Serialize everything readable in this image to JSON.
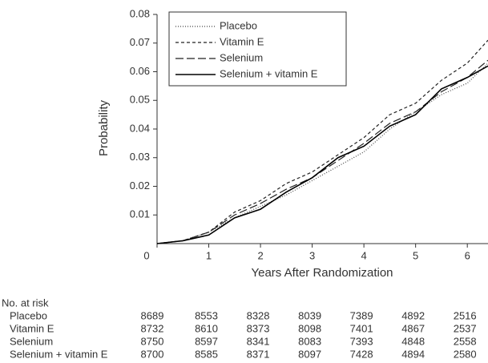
{
  "chart_data": {
    "type": "line",
    "x_label": "Years After Randomization",
    "y_label": "Probability",
    "x": [
      0,
      0.5,
      1,
      1.5,
      2,
      2.5,
      3,
      3.5,
      4,
      4.5,
      5,
      5.5,
      6,
      6.4
    ],
    "series": [
      {
        "name": "Placebo",
        "color": "#444444",
        "dash": "1,2",
        "values": [
          0,
          0.001,
          0.004,
          0.009,
          0.013,
          0.017,
          0.022,
          0.027,
          0.032,
          0.04,
          0.046,
          0.052,
          0.056,
          0.063
        ]
      },
      {
        "name": "Vitamin E",
        "color": "#222222",
        "dash": "4,3",
        "values": [
          0,
          0.001,
          0.004,
          0.011,
          0.015,
          0.021,
          0.025,
          0.031,
          0.037,
          0.045,
          0.049,
          0.057,
          0.063,
          0.071
        ]
      },
      {
        "name": "Selenium",
        "color": "#222222",
        "dash": "10,4",
        "values": [
          0,
          0.001,
          0.004,
          0.01,
          0.014,
          0.019,
          0.023,
          0.029,
          0.035,
          0.042,
          0.046,
          0.053,
          0.058,
          0.064
        ]
      },
      {
        "name": "Selenium + vitamin E",
        "color": "#000000",
        "dash": "none",
        "values": [
          0,
          0.001,
          0.003,
          0.009,
          0.012,
          0.018,
          0.023,
          0.03,
          0.034,
          0.041,
          0.045,
          0.054,
          0.058,
          0.062
        ]
      }
    ],
    "xlim": [
      0,
      6.4
    ],
    "xticks": [
      0,
      1,
      2,
      3,
      4,
      5,
      6
    ],
    "ylim": [
      0,
      0.08
    ],
    "yticks": [
      0.01,
      0.02,
      0.03,
      0.04,
      0.05,
      0.06,
      0.07,
      0.08
    ],
    "legend": "upper-left",
    "risk_table": {
      "title": "No. at risk",
      "rows": [
        {
          "label": "Placebo",
          "values": [
            8689,
            8553,
            8328,
            8039,
            7389,
            4892,
            2516
          ]
        },
        {
          "label": "Vitamin E",
          "values": [
            8732,
            8610,
            8373,
            8098,
            7401,
            4867,
            2537
          ]
        },
        {
          "label": "Selenium",
          "values": [
            8750,
            8597,
            8341,
            8083,
            7393,
            4848,
            2558
          ]
        },
        {
          "label": "Selenium + vitamin E",
          "values": [
            8700,
            8585,
            8371,
            8097,
            7428,
            4894,
            2580
          ]
        }
      ]
    }
  }
}
